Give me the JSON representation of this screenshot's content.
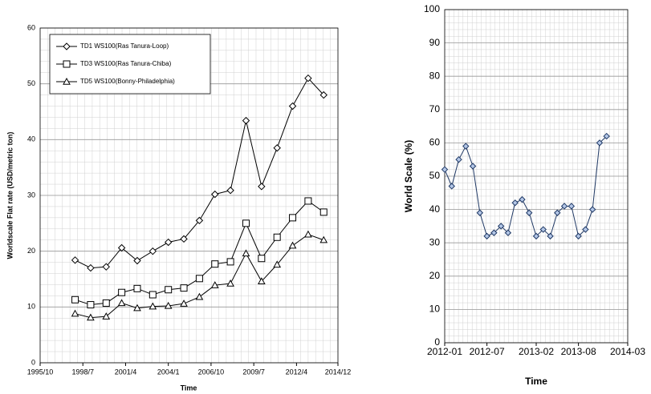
{
  "chart_data": [
    {
      "type": "line",
      "y_label": "Worldscale Flat rate (USD/metric ton)",
      "x_label": "Time",
      "x": [
        "1998/1",
        "1999/1",
        "2000/1",
        "2001/1",
        "2002/1",
        "2003/1",
        "2004/1",
        "2005/1",
        "2006/1",
        "2007/1",
        "2008/1",
        "2009/1",
        "2010/1",
        "2011/1",
        "2012/1",
        "2013/1",
        "2014/1"
      ],
      "xlim": [
        "1995/10",
        "2014/12"
      ],
      "xticks": [
        "1995/10",
        "1998/7",
        "2001/4",
        "2004/1",
        "2006/10",
        "2009/7",
        "2012/4",
        "2014/12"
      ],
      "ylim": [
        0,
        60
      ],
      "yticks": [
        0,
        10,
        20,
        30,
        40,
        50,
        60
      ],
      "grid": true,
      "legend": "upper left",
      "series": [
        {
          "name": "TD1 WS100(Ras Tanura-Loop)",
          "color": "#000000",
          "marker": "diamond",
          "values": [
            18.4,
            17,
            17.2,
            20.6,
            18.3,
            20,
            21.6,
            22.2,
            25.5,
            30.2,
            30.9,
            43.4,
            31.6,
            38.5,
            46,
            51,
            48
          ]
        },
        {
          "name": "TD3 WS100(Ras Tanura-Chiba)",
          "color": "#000000",
          "marker": "square",
          "values": [
            11.3,
            10.4,
            10.7,
            12.6,
            13.3,
            12.2,
            13.1,
            13.4,
            15.1,
            17.7,
            18.1,
            25,
            18.7,
            22.5,
            26,
            29,
            27
          ]
        },
        {
          "name": "TD5 WS100(Bonny-Philadelphia)",
          "color": "#000000",
          "marker": "triangle",
          "values": [
            8.8,
            8.1,
            8.3,
            10.7,
            9.8,
            10.1,
            10.2,
            10.6,
            11.8,
            13.9,
            14.2,
            19.6,
            14.6,
            17.6,
            21,
            23,
            22
          ]
        }
      ]
    },
    {
      "type": "line",
      "y_label": "World Scale (%)",
      "x_label": "Time",
      "x": [
        "2012-01",
        "2012-02",
        "2012-03",
        "2012-04",
        "2012-05",
        "2012-06",
        "2012-07",
        "2012-08",
        "2012-09",
        "2012-10",
        "2012-11",
        "2012-12",
        "2013-01",
        "2013-02",
        "2013-03",
        "2013-04",
        "2013-05",
        "2013-06",
        "2013-07",
        "2013-08",
        "2013-09",
        "2013-10",
        "2013-11",
        "2013-12"
      ],
      "xlim": [
        "2012-01",
        "2014-03"
      ],
      "xticks": [
        "2012-01",
        "2012-07",
        "2013-02",
        "2013-08",
        "2014-03"
      ],
      "ylim": [
        0,
        100
      ],
      "yticks": [
        0,
        10,
        20,
        30,
        40,
        50,
        60,
        70,
        80,
        90,
        100
      ],
      "grid": true,
      "series": [
        {
          "color": "#1f3864",
          "marker": "diamond",
          "marker_fill": "#b4c7e7",
          "values": [
            52,
            47,
            55,
            59,
            53,
            39,
            32,
            33,
            35,
            33,
            42,
            43,
            39,
            32,
            34,
            32,
            39,
            41,
            41,
            32,
            34,
            40,
            60,
            62
          ]
        }
      ]
    }
  ]
}
